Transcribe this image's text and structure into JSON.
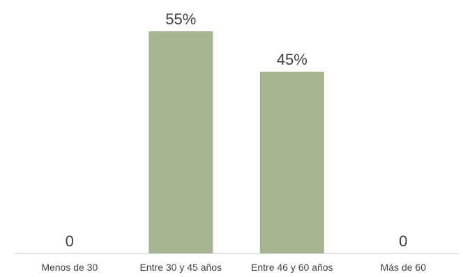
{
  "chart_data": {
    "type": "bar",
    "categories": [
      "Menos de 30",
      "Entre 30 y 45 años",
      "Entre 46 y 60 años",
      "Más de 60"
    ],
    "values": [
      0,
      55,
      45,
      0
    ],
    "data_labels": [
      "0",
      "55%",
      "45%",
      "0"
    ],
    "unit": "%",
    "ylim": [
      0,
      55
    ],
    "grid": false,
    "legend": "none",
    "title": "",
    "xlabel": "",
    "ylabel": "",
    "bar_color": "#a5b592",
    "axis_color": "#d9d9d9",
    "text_color": "#404040"
  }
}
